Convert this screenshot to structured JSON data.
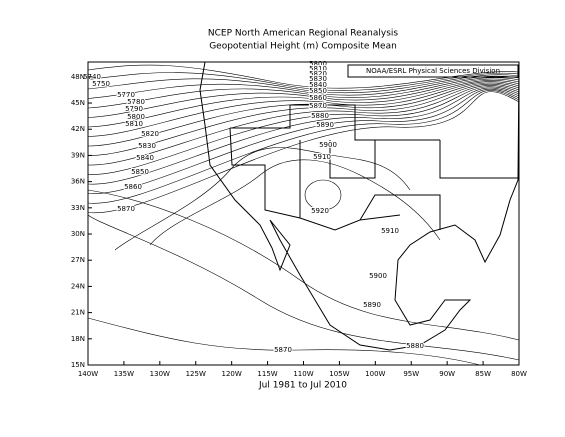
{
  "map": {
    "title": [
      "NCEP North American Regional Reanalysis",
      "Geopotential Height (m) Composite Mean"
    ],
    "credit": "NOAA/ESRL Physical Sciences Division",
    "footer": "Jul 1981 to Jul 2010",
    "xlim": [
      -140,
      -80
    ],
    "ylim": [
      15,
      49.7
    ],
    "xticks": [
      {
        "value": -140,
        "label": "140W"
      },
      {
        "value": -135,
        "label": "135W"
      },
      {
        "value": -130,
        "label": "130W"
      },
      {
        "value": -125,
        "label": "125W"
      },
      {
        "value": -120,
        "label": "120W"
      },
      {
        "value": -115,
        "label": "115W"
      },
      {
        "value": -110,
        "label": "110W"
      },
      {
        "value": -105,
        "label": "105W"
      },
      {
        "value": -100,
        "label": "100W"
      },
      {
        "value": -95,
        "label": "95W"
      },
      {
        "value": -90,
        "label": "90W"
      },
      {
        "value": -85,
        "label": "85W"
      },
      {
        "value": -80,
        "label": "80W"
      }
    ],
    "yticks": [
      {
        "value": 15,
        "label": "15N"
      },
      {
        "value": 18,
        "label": "18N"
      },
      {
        "value": 21,
        "label": "21N"
      },
      {
        "value": 24,
        "label": "24N"
      },
      {
        "value": 27,
        "label": "27N"
      },
      {
        "value": 30,
        "label": "30N"
      },
      {
        "value": 33,
        "label": "33N"
      },
      {
        "value": 36,
        "label": "36N"
      },
      {
        "value": 39,
        "label": "39N"
      },
      {
        "value": 42,
        "label": "42N"
      },
      {
        "value": 45,
        "label": "45N"
      },
      {
        "value": 48,
        "label": "48N"
      }
    ],
    "contour_labels": [
      "5740",
      "5750",
      "5770",
      "5780",
      "5790",
      "5800",
      "5810",
      "5820",
      "5830",
      "5840",
      "5850",
      "5860",
      "5870",
      "5800",
      "5810",
      "5820",
      "5830",
      "5840",
      "5850",
      "5860",
      "5870",
      "5880",
      "5890",
      "5900",
      "5910",
      "5920",
      "5910",
      "5900",
      "5890",
      "5880",
      "5870"
    ]
  }
}
